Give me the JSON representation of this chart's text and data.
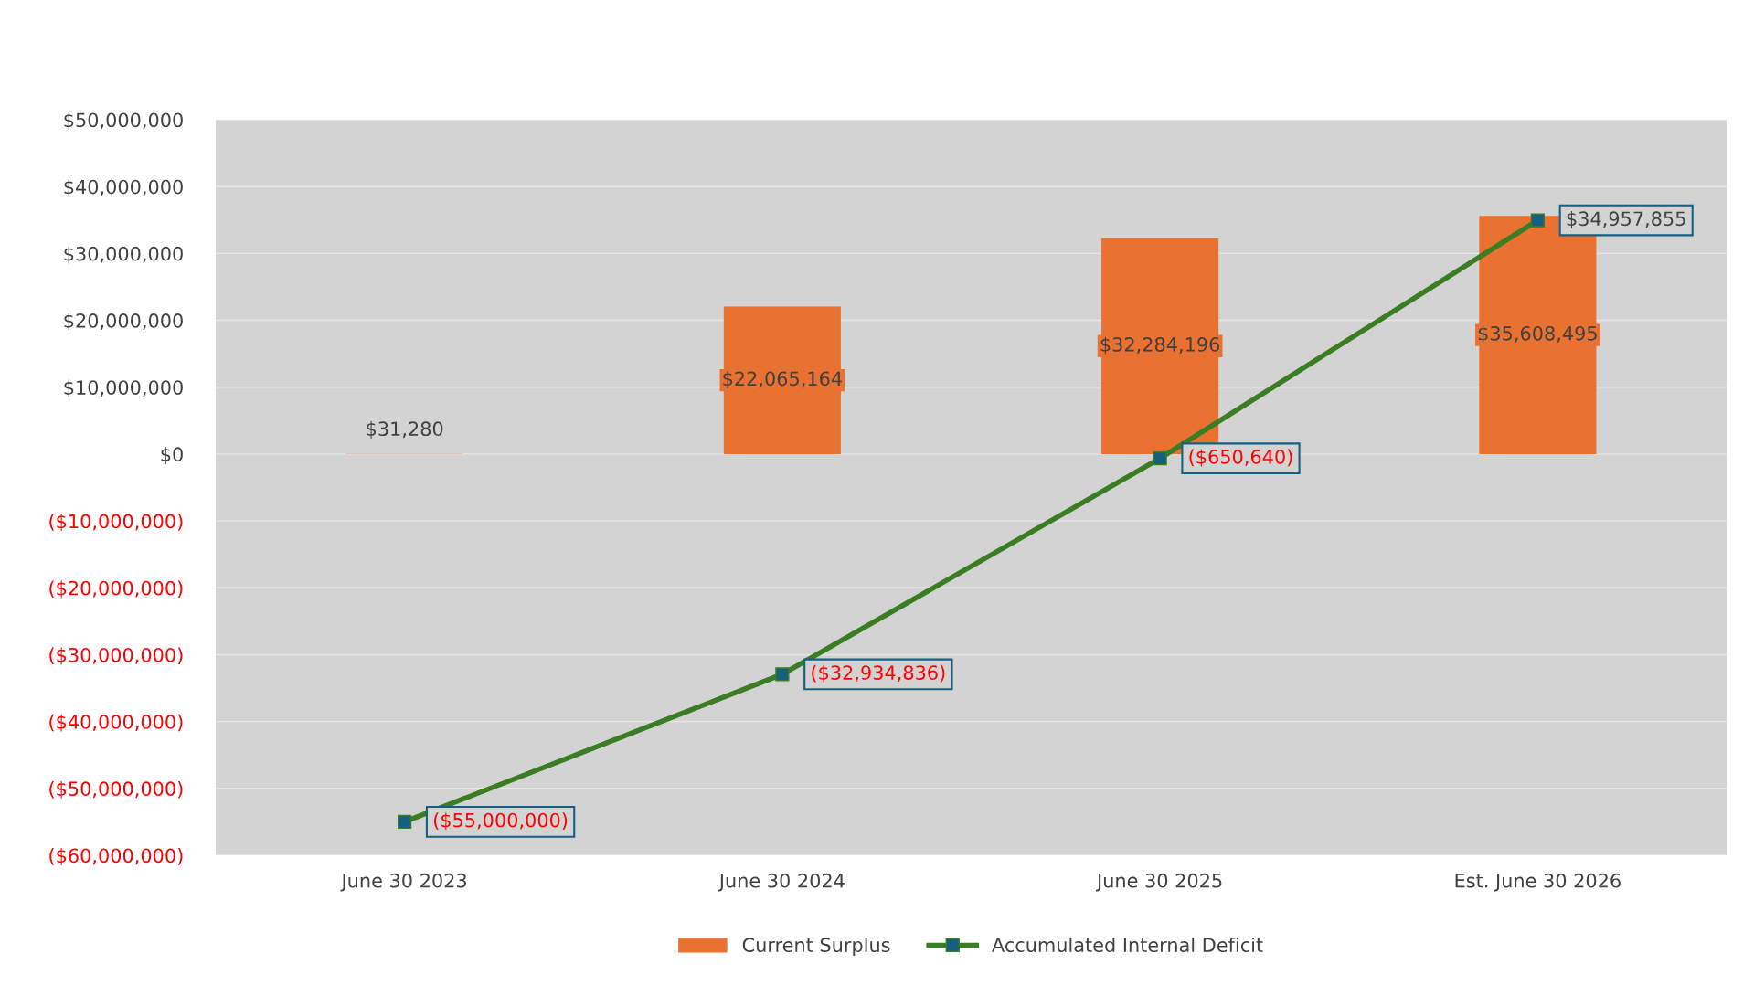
{
  "chart_data": {
    "type": "bar",
    "categories": [
      "June 30 2023",
      "June 30 2024",
      "June 30 2025",
      "Est. June 30 2026"
    ],
    "series": [
      {
        "name": "Current Surplus",
        "color": "#e97132",
        "values": [
          31280,
          22065164,
          32284196,
          35608495
        ],
        "value_labels": [
          "$31,280",
          "$22,065,164",
          "$32,284,196",
          "$35,608,495"
        ]
      },
      {
        "name": "Accumulated Internal Deficit",
        "type": "line",
        "color": "#3a7d22",
        "marker": "square",
        "values": [
          -55000000,
          -32934836,
          -650640,
          34957855
        ],
        "value_labels": [
          "($55,000,000)",
          "($32,934,836)",
          "($650,640)",
          "$34,957,855"
        ]
      }
    ],
    "ylim": [
      -60000000,
      50000000
    ],
    "yticks": [
      {
        "value": 50000000,
        "label": "$50,000,000"
      },
      {
        "value": 40000000,
        "label": "$40,000,000"
      },
      {
        "value": 30000000,
        "label": "$30,000,000"
      },
      {
        "value": 20000000,
        "label": "$20,000,000"
      },
      {
        "value": 10000000,
        "label": "$10,000,000"
      },
      {
        "value": 0,
        "label": "$0"
      },
      {
        "value": -10000000,
        "label": "($10,000,000)"
      },
      {
        "value": -20000000,
        "label": "($20,000,000)"
      },
      {
        "value": -30000000,
        "label": "($30,000,000)"
      },
      {
        "value": -40000000,
        "label": "($40,000,000)"
      },
      {
        "value": -50000000,
        "label": "($50,000,000)"
      },
      {
        "value": -60000000,
        "label": "($60,000,000)"
      }
    ],
    "grid": "y",
    "legend": "bottom"
  }
}
